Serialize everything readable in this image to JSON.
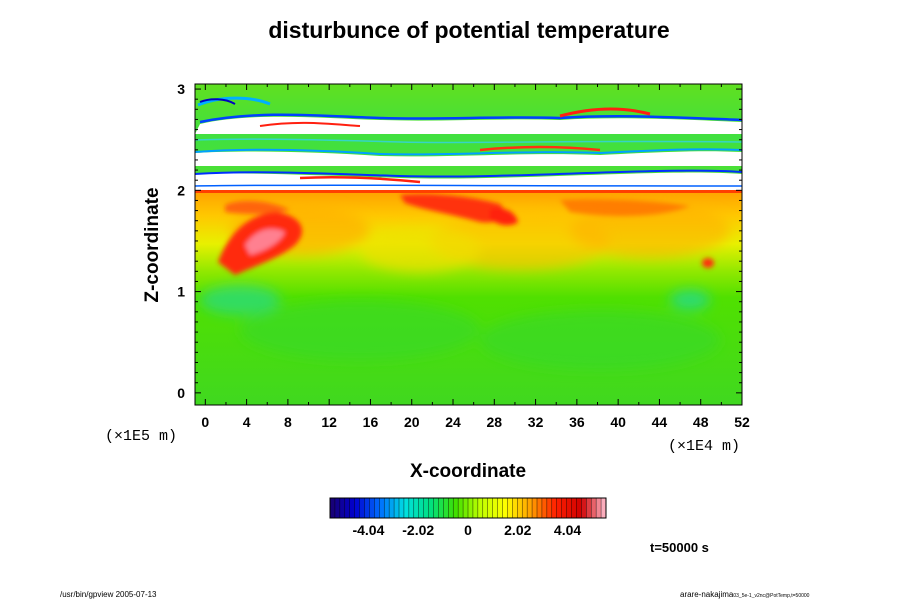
{
  "chart_data": {
    "type": "heatmap",
    "title": "disturbunce of potential temperature",
    "xlabel": "X-coordinate",
    "ylabel": "Z-coordinate",
    "x_ticks": [
      0,
      4,
      8,
      12,
      16,
      20,
      24,
      28,
      32,
      36,
      40,
      44,
      48,
      52
    ],
    "y_ticks": [
      0,
      1,
      2,
      3
    ],
    "xlim": [
      -1,
      52
    ],
    "ylim": [
      -0.12,
      3.05
    ],
    "x_unit": "(×1E4 m)",
    "y_unit": "(×1E5 m)",
    "colorbar": {
      "ticks": [
        "-4.04",
        "-2.02",
        "0",
        "2.02",
        "4.04"
      ],
      "tick_values": [
        -4.04,
        -2.02,
        0,
        2.02,
        4.04
      ],
      "range": [
        -5.6,
        5.6
      ],
      "colors": [
        "#1a0070",
        "#0000d0",
        "#0070ff",
        "#00e0e0",
        "#00e080",
        "#40e000",
        "#c0ff00",
        "#ffff00",
        "#ffa000",
        "#ff2000",
        "#d00000",
        "#ffc0d0"
      ]
    },
    "grid": false,
    "legend": "colorbar-bottom"
  },
  "time_label": "t=50000 s",
  "footer": {
    "left": "/usr/bin/gpview 2005-07-13",
    "right_main": "arare-nakajima",
    "right_sub": "03_5e-1_v2nc@PotTemp,t=50000"
  }
}
